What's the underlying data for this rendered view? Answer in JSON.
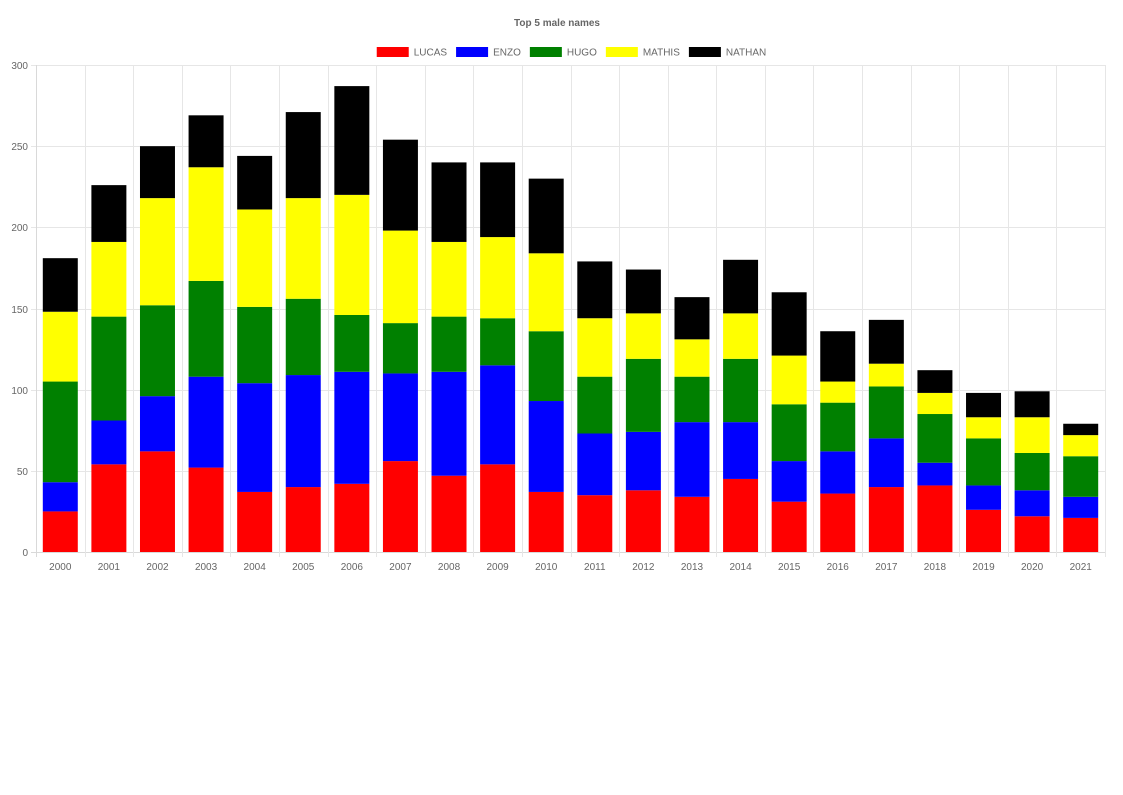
{
  "chart_data": {
    "type": "bar",
    "stacked": true,
    "title": "Top 5 male names",
    "legend_position": "top",
    "grid": true,
    "ylim": [
      0,
      300
    ],
    "yticks": [
      "0",
      "50",
      "100",
      "150",
      "200",
      "250",
      "300"
    ],
    "categories": [
      "2000",
      "2001",
      "2002",
      "2003",
      "2004",
      "2005",
      "2006",
      "2007",
      "2008",
      "2009",
      "2010",
      "2011",
      "2012",
      "2013",
      "2014",
      "2015",
      "2016",
      "2017",
      "2018",
      "2019",
      "2020",
      "2021"
    ],
    "series": [
      {
        "name": "LUCAS",
        "color": "#ff0000",
        "values": [
          25,
          54,
          62,
          52,
          37,
          40,
          42,
          56,
          47,
          54,
          37,
          35,
          38,
          34,
          45,
          31,
          36,
          40,
          41,
          26,
          22,
          21
        ]
      },
      {
        "name": "ENZO",
        "color": "#0000ff",
        "values": [
          18,
          27,
          34,
          56,
          67,
          69,
          69,
          54,
          64,
          61,
          56,
          38,
          36,
          46,
          35,
          25,
          26,
          30,
          14,
          15,
          16,
          13
        ]
      },
      {
        "name": "HUGO",
        "color": "#008000",
        "values": [
          62,
          64,
          56,
          59,
          47,
          47,
          35,
          31,
          34,
          29,
          43,
          35,
          45,
          28,
          39,
          35,
          30,
          32,
          30,
          29,
          23,
          25
        ]
      },
      {
        "name": "MATHIS",
        "color": "#ffff00",
        "values": [
          43,
          46,
          66,
          70,
          60,
          62,
          74,
          57,
          46,
          50,
          48,
          36,
          28,
          23,
          28,
          30,
          13,
          14,
          13,
          13,
          22,
          13
        ]
      },
      {
        "name": "NATHAN",
        "color": "#000000",
        "values": [
          33,
          35,
          32,
          32,
          33,
          53,
          67,
          56,
          49,
          46,
          46,
          35,
          27,
          26,
          33,
          39,
          31,
          27,
          14,
          15,
          16,
          7
        ]
      }
    ]
  }
}
